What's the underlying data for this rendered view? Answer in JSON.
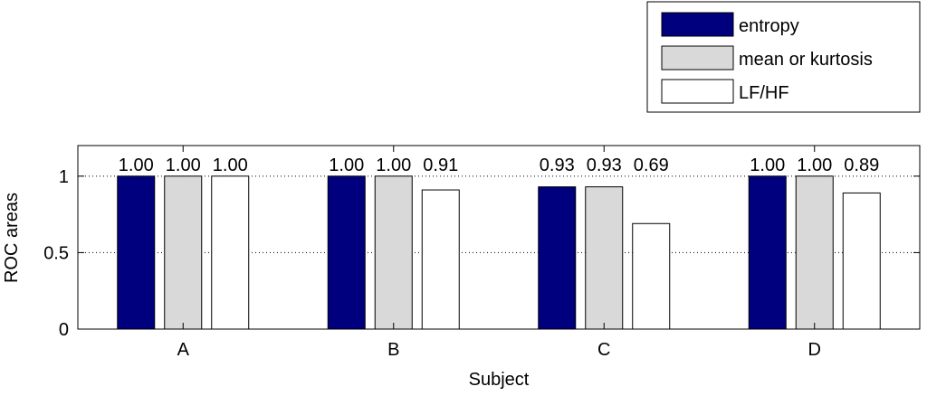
{
  "chart_data": {
    "type": "bar",
    "categories": [
      "A",
      "B",
      "C",
      "D"
    ],
    "series": [
      {
        "name": "entropy",
        "color": "#00007f",
        "values": [
          1.0,
          1.0,
          0.93,
          1.0
        ],
        "labels": [
          "1.00",
          "1.00",
          "0.93",
          "1.00"
        ]
      },
      {
        "name": "mean or kurtosis",
        "color": "#d9d9d9",
        "values": [
          1.0,
          1.0,
          0.93,
          1.0
        ],
        "labels": [
          "1.00",
          "1.00",
          "0.93",
          "1.00"
        ]
      },
      {
        "name": "LF/HF",
        "color": "#ffffff",
        "values": [
          1.0,
          0.91,
          0.69,
          0.89
        ],
        "labels": [
          "1.00",
          "0.91",
          "0.69",
          "0.89"
        ]
      }
    ],
    "xlabel": "Subject",
    "ylabel": "ROC areas",
    "ylim": [
      0,
      1.2
    ],
    "yticks": [
      0,
      0.5,
      1
    ],
    "ytick_labels": [
      "0",
      "0.5",
      "1"
    ],
    "grid": "horizontal-dotted",
    "legend": "top-right, outside plot"
  }
}
